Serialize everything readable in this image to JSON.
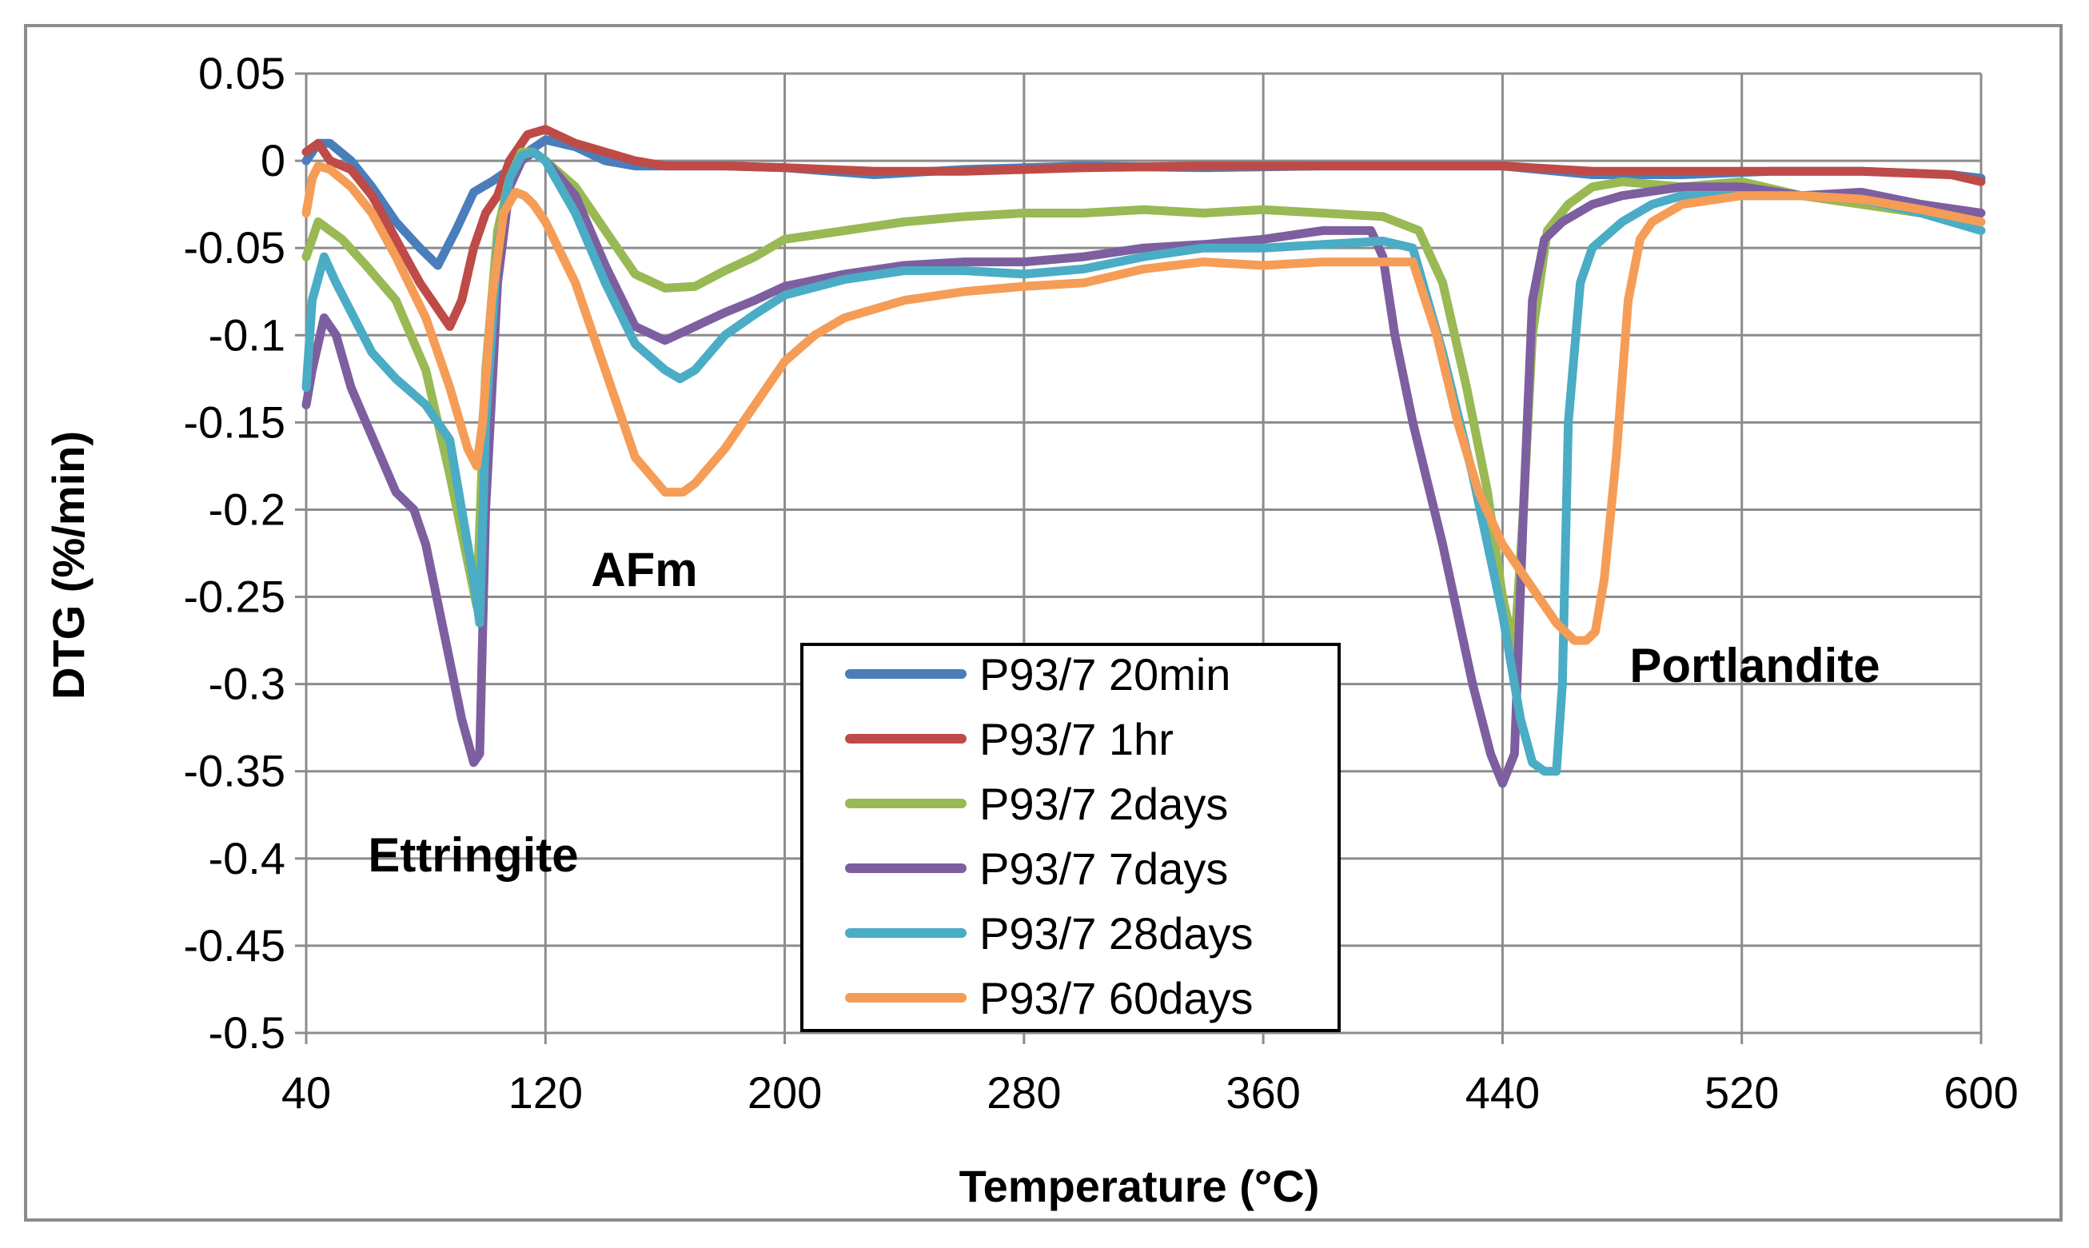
{
  "chart_data": {
    "type": "line",
    "title": "",
    "xlabel": "Temperature (°C)",
    "ylabel": "DTG (%/min)",
    "xlim": [
      40,
      600
    ],
    "ylim": [
      -0.5,
      0.05
    ],
    "x_ticks": [
      40,
      120,
      200,
      280,
      360,
      440,
      520,
      600
    ],
    "x_tick_labels": [
      "40",
      "120",
      "200",
      "280",
      "360",
      "440",
      "520",
      "600"
    ],
    "y_ticks": [
      0.05,
      0,
      -0.05,
      -0.1,
      -0.15,
      -0.2,
      -0.25,
      -0.3,
      -0.35,
      -0.4,
      -0.45,
      -0.5
    ],
    "y_tick_labels": [
      "0.05",
      "0",
      "-0.05",
      "-0.1",
      "-0.15",
      "-0.2",
      "-0.25",
      "-0.3",
      "-0.35",
      "-0.4",
      "-0.45",
      "-0.5"
    ],
    "grid": true,
    "legend_position": "center-bottom",
    "annotations": [
      {
        "text": "Ettringite",
        "x": 95,
        "y": -0.395
      },
      {
        "text": "AFm",
        "x": 152,
        "y": -0.232
      },
      {
        "text": "Portlandite",
        "x": 514,
        "y": -0.295
      }
    ],
    "series": [
      {
        "name": "P93/7 20min",
        "color": "#4A7EBB",
        "x": [
          40,
          44,
          48,
          55,
          62,
          70,
          78,
          84,
          90,
          96,
          102,
          108,
          114,
          120,
          130,
          140,
          150,
          160,
          180,
          200,
          230,
          260,
          300,
          340,
          380,
          420,
          440,
          470,
          500,
          530,
          560,
          590,
          600
        ],
        "y": [
          0.0,
          0.01,
          0.01,
          0.0,
          -0.015,
          -0.035,
          -0.05,
          -0.06,
          -0.04,
          -0.018,
          -0.012,
          -0.005,
          0.005,
          0.012,
          0.008,
          0.0,
          -0.003,
          -0.003,
          -0.003,
          -0.004,
          -0.008,
          -0.005,
          -0.003,
          -0.004,
          -0.003,
          -0.003,
          -0.003,
          -0.008,
          -0.008,
          -0.006,
          -0.006,
          -0.008,
          -0.01
        ]
      },
      {
        "name": "P93/7 1hr",
        "color": "#BE4B48",
        "x": [
          40,
          44,
          48,
          55,
          62,
          70,
          78,
          84,
          88,
          92,
          96,
          100,
          104,
          108,
          114,
          120,
          130,
          140,
          150,
          160,
          180,
          200,
          230,
          260,
          300,
          340,
          380,
          420,
          440,
          470,
          500,
          530,
          560,
          590,
          600
        ],
        "y": [
          0.005,
          0.01,
          0.0,
          -0.005,
          -0.02,
          -0.045,
          -0.07,
          -0.085,
          -0.095,
          -0.08,
          -0.05,
          -0.03,
          -0.02,
          0.0,
          0.015,
          0.018,
          0.01,
          0.005,
          0.0,
          -0.003,
          -0.003,
          -0.004,
          -0.006,
          -0.006,
          -0.004,
          -0.003,
          -0.003,
          -0.003,
          -0.003,
          -0.006,
          -0.006,
          -0.006,
          -0.006,
          -0.008,
          -0.012
        ]
      },
      {
        "name": "P93/7 2days",
        "color": "#98B954",
        "x": [
          40,
          44,
          48,
          52,
          60,
          70,
          80,
          88,
          94,
          97,
          100,
          104,
          108,
          112,
          116,
          120,
          130,
          140,
          150,
          160,
          170,
          180,
          190,
          200,
          220,
          240,
          260,
          280,
          300,
          320,
          340,
          360,
          380,
          400,
          412,
          420,
          428,
          435,
          440,
          444,
          447,
          450,
          455,
          462,
          470,
          480,
          500,
          520,
          540,
          560,
          580,
          600
        ],
        "y": [
          -0.055,
          -0.035,
          -0.04,
          -0.045,
          -0.06,
          -0.08,
          -0.12,
          -0.18,
          -0.23,
          -0.255,
          -0.12,
          -0.04,
          -0.01,
          0.005,
          0.005,
          0.0,
          -0.015,
          -0.04,
          -0.065,
          -0.073,
          -0.072,
          -0.063,
          -0.055,
          -0.045,
          -0.04,
          -0.035,
          -0.032,
          -0.03,
          -0.03,
          -0.028,
          -0.03,
          -0.028,
          -0.03,
          -0.032,
          -0.04,
          -0.07,
          -0.13,
          -0.19,
          -0.25,
          -0.28,
          -0.2,
          -0.1,
          -0.04,
          -0.025,
          -0.015,
          -0.012,
          -0.015,
          -0.012,
          -0.02,
          -0.025,
          -0.03,
          -0.035
        ]
      },
      {
        "name": "P93/7 7days",
        "color": "#7D5FA0",
        "x": [
          40,
          42,
          46,
          50,
          55,
          60,
          70,
          76,
          80,
          86,
          92,
          96,
          98,
          100,
          104,
          108,
          112,
          116,
          120,
          130,
          140,
          150,
          160,
          170,
          180,
          190,
          200,
          220,
          240,
          260,
          280,
          300,
          320,
          340,
          360,
          380,
          396,
          400,
          404,
          410,
          420,
          430,
          436,
          440,
          444,
          447,
          450,
          454,
          460,
          470,
          480,
          500,
          520,
          540,
          560,
          580,
          600
        ],
        "y": [
          -0.14,
          -0.12,
          -0.09,
          -0.1,
          -0.13,
          -0.15,
          -0.19,
          -0.2,
          -0.22,
          -0.27,
          -0.32,
          -0.345,
          -0.34,
          -0.2,
          -0.07,
          -0.015,
          0.0,
          0.005,
          0.0,
          -0.02,
          -0.06,
          -0.095,
          -0.103,
          -0.095,
          -0.087,
          -0.08,
          -0.072,
          -0.065,
          -0.06,
          -0.058,
          -0.058,
          -0.055,
          -0.05,
          -0.048,
          -0.045,
          -0.04,
          -0.04,
          -0.055,
          -0.1,
          -0.15,
          -0.22,
          -0.3,
          -0.34,
          -0.357,
          -0.34,
          -0.2,
          -0.08,
          -0.045,
          -0.035,
          -0.025,
          -0.02,
          -0.015,
          -0.015,
          -0.02,
          -0.018,
          -0.025,
          -0.03
        ]
      },
      {
        "name": "P93/7 28days",
        "color": "#4AACC5",
        "x": [
          40,
          42,
          46,
          50,
          56,
          62,
          70,
          80,
          88,
          92,
          96,
          98,
          100,
          104,
          108,
          112,
          116,
          120,
          130,
          140,
          150,
          160,
          165,
          170,
          180,
          190,
          200,
          220,
          240,
          260,
          280,
          300,
          320,
          340,
          360,
          380,
          400,
          410,
          420,
          430,
          440,
          446,
          450,
          454,
          458,
          460,
          462,
          466,
          470,
          480,
          490,
          500,
          520,
          540,
          560,
          580,
          600
        ],
        "y": [
          -0.13,
          -0.08,
          -0.055,
          -0.07,
          -0.09,
          -0.11,
          -0.125,
          -0.14,
          -0.16,
          -0.2,
          -0.24,
          -0.265,
          -0.15,
          -0.05,
          -0.01,
          0.003,
          0.005,
          0.0,
          -0.03,
          -0.07,
          -0.105,
          -0.12,
          -0.125,
          -0.12,
          -0.1,
          -0.088,
          -0.077,
          -0.068,
          -0.063,
          -0.063,
          -0.065,
          -0.062,
          -0.055,
          -0.05,
          -0.05,
          -0.048,
          -0.046,
          -0.05,
          -0.11,
          -0.18,
          -0.26,
          -0.32,
          -0.345,
          -0.35,
          -0.35,
          -0.3,
          -0.15,
          -0.07,
          -0.05,
          -0.035,
          -0.025,
          -0.02,
          -0.02,
          -0.02,
          -0.022,
          -0.03,
          -0.04
        ]
      },
      {
        "name": "P93/7 60days",
        "color": "#F59D56",
        "x": [
          40,
          42,
          44,
          48,
          55,
          62,
          70,
          80,
          88,
          94,
          97,
          99,
          102,
          106,
          110,
          113,
          116,
          120,
          130,
          140,
          150,
          160,
          166,
          170,
          180,
          190,
          200,
          210,
          220,
          240,
          260,
          280,
          300,
          320,
          340,
          360,
          380,
          400,
          410,
          418,
          425,
          432,
          440,
          450,
          458,
          464,
          468,
          471,
          474,
          478,
          482,
          486,
          490,
          500,
          520,
          540,
          560,
          580,
          600
        ],
        "y": [
          -0.03,
          -0.01,
          -0.003,
          -0.005,
          -0.015,
          -0.03,
          -0.055,
          -0.09,
          -0.13,
          -0.165,
          -0.175,
          -0.15,
          -0.08,
          -0.03,
          -0.018,
          -0.02,
          -0.025,
          -0.035,
          -0.07,
          -0.12,
          -0.17,
          -0.19,
          -0.19,
          -0.185,
          -0.165,
          -0.14,
          -0.115,
          -0.1,
          -0.09,
          -0.08,
          -0.075,
          -0.072,
          -0.07,
          -0.062,
          -0.058,
          -0.06,
          -0.058,
          -0.058,
          -0.058,
          -0.1,
          -0.15,
          -0.19,
          -0.22,
          -0.245,
          -0.265,
          -0.275,
          -0.275,
          -0.27,
          -0.24,
          -0.17,
          -0.08,
          -0.045,
          -0.035,
          -0.025,
          -0.02,
          -0.02,
          -0.022,
          -0.028,
          -0.035
        ]
      }
    ]
  }
}
